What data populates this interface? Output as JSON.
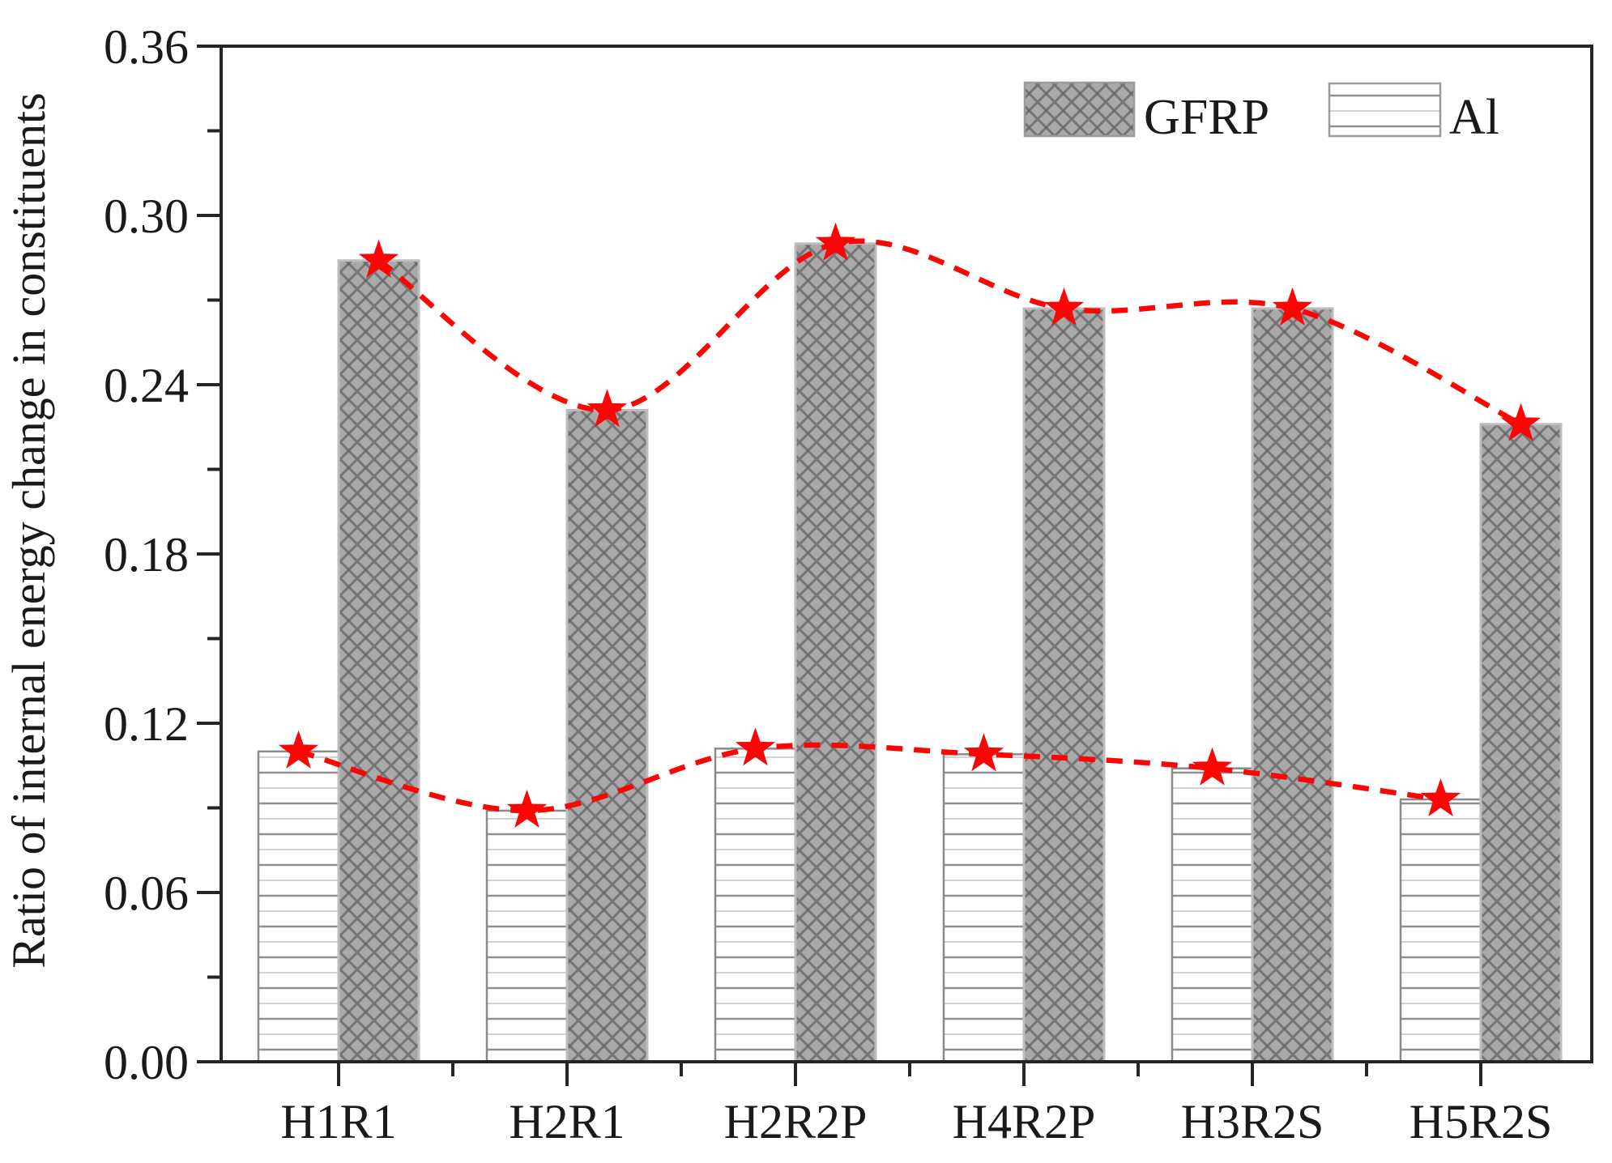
{
  "chart_data": {
    "type": "bar",
    "title": "",
    "xlabel": "",
    "ylabel": "Ratio of internal energy change in constituents",
    "categories": [
      "H1R1",
      "H2R1",
      "H2R2P",
      "H4R2P",
      "H3R2S",
      "H5R2S"
    ],
    "series": [
      {
        "name": "GFRP",
        "pattern": "crosshatch",
        "fill": "#a9a9a9",
        "hatch_color": "#646464",
        "values": [
          0.284,
          0.231,
          0.29,
          0.267,
          0.267,
          0.226
        ]
      },
      {
        "name": "Al",
        "pattern": "horizontal-lines",
        "fill": "#ffffff",
        "hatch_color": "#8f8f8f",
        "values": [
          0.11,
          0.089,
          0.111,
          0.109,
          0.104,
          0.093
        ]
      }
    ],
    "markers": {
      "shape": "star",
      "color": "#fb0505"
    },
    "trend_lines": {
      "style": "dashed",
      "color": "#fb0505"
    },
    "ylim": [
      0,
      0.36
    ],
    "ytick_step": 0.06,
    "ytick_labels": [
      "0.00",
      "0.06",
      "0.12",
      "0.18",
      "0.24",
      "0.30",
      "0.36"
    ],
    "grid": "off",
    "legend": {
      "position": "top-right",
      "items": [
        "GFRP",
        "Al"
      ]
    }
  }
}
